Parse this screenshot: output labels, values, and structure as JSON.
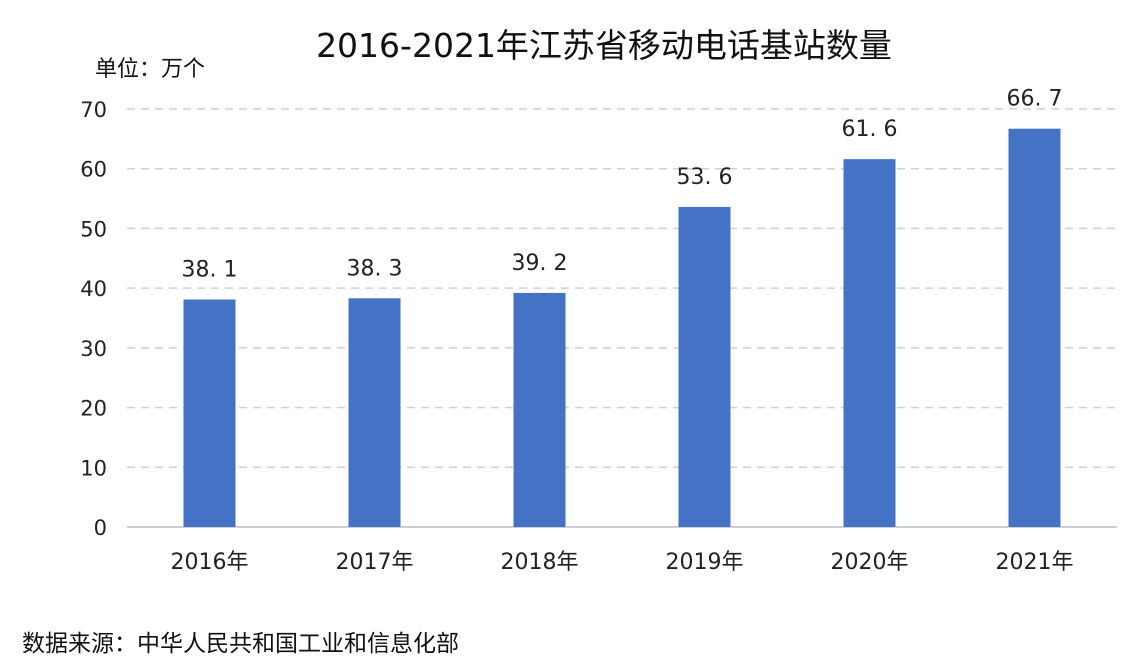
{
  "chart_data": {
    "type": "bar",
    "title": "2016-2021年江苏省移动电话基站数量",
    "unit_label": "单位：万个",
    "categories": [
      "2016年",
      "2017年",
      "2018年",
      "2019年",
      "2020年",
      "2021年"
    ],
    "values": [
      38.1,
      38.3,
      39.2,
      53.6,
      61.6,
      66.7
    ],
    "data_labels": [
      "38. 1",
      "38. 3",
      "39. 2",
      "53. 6",
      "61. 6",
      "66. 7"
    ],
    "ylim": [
      0,
      70
    ],
    "yticks": [
      0,
      10,
      20,
      30,
      40,
      50,
      60,
      70
    ],
    "grid": true,
    "grid_style": "dashed",
    "bar_color": "#4472C4"
  },
  "source_note": "数据来源：中华人民共和国工业和信息化部"
}
